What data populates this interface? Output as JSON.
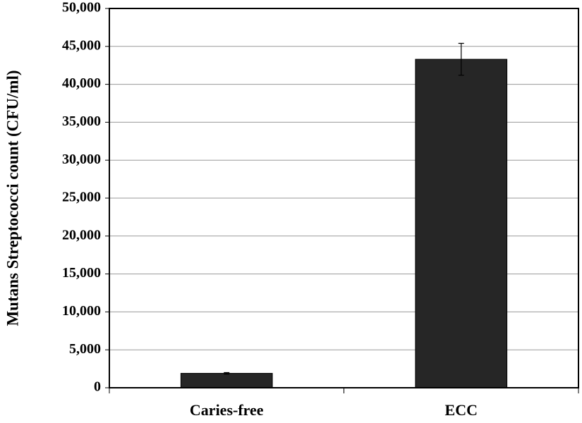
{
  "chart_data": {
    "type": "bar",
    "y_label": "Mutans Streptococci count (CFU/ml)",
    "categories": [
      "Caries-free",
      "ECC"
    ],
    "values": [
      1900,
      43300
    ],
    "errors": [
      100,
      2100
    ],
    "color": "#262626",
    "ylim": [
      0,
      50000
    ],
    "yticks": [
      0,
      {
        "value": 5000,
        "label": "5,000"
      },
      {
        "value": 10000,
        "label": "10,000"
      },
      {
        "value": 15000,
        "label": "15,000"
      },
      {
        "value": 20000,
        "label": "20,000"
      },
      {
        "value": 25000,
        "label": "25,000"
      },
      {
        "value": 30000,
        "label": "30,000"
      },
      {
        "value": 35000,
        "label": "35,000"
      },
      {
        "value": 40000,
        "label": "40,000"
      },
      {
        "value": 45000,
        "label": "45,000"
      },
      {
        "value": 50000,
        "label": "50,000"
      }
    ],
    "grid": true
  }
}
